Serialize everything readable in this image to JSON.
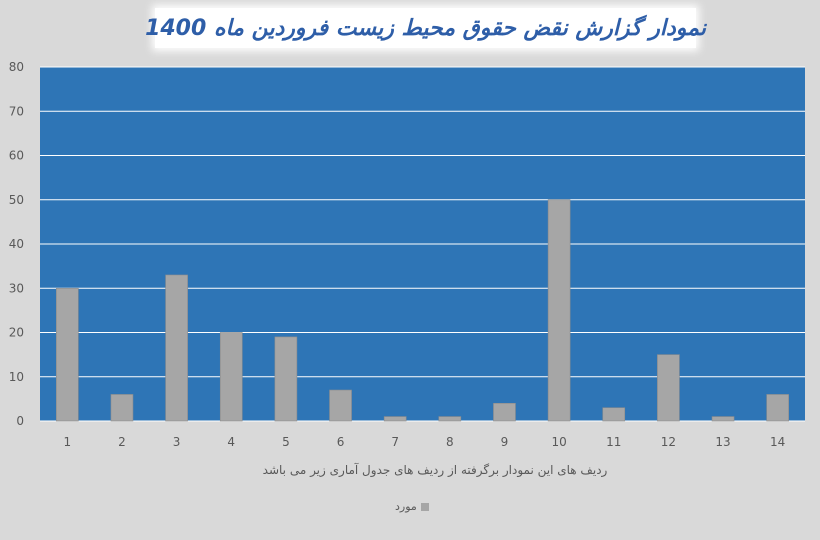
{
  "chart_data": {
    "type": "bar",
    "title": "نمودار گزارش نقض حقوق محیط زیست فروردین ماه 1400",
    "xlabel": "ردیف های این نمودار برگرفته از ردیف های جدول آماری زیر می باشد",
    "ylabel": "",
    "categories": [
      "1",
      "2",
      "3",
      "4",
      "5",
      "6",
      "7",
      "8",
      "9",
      "10",
      "11",
      "12",
      "13",
      "14"
    ],
    "series": [
      {
        "name": "مورد",
        "values": [
          30,
          6,
          33,
          20,
          19,
          7,
          1,
          1,
          4,
          50,
          3,
          15,
          1,
          6
        ]
      }
    ],
    "ylim": [
      0,
      80
    ],
    "yticks": [
      "0",
      "10",
      "20",
      "30",
      "40",
      "50",
      "60",
      "70",
      "80"
    ],
    "grid": true,
    "legend_position": "bottom",
    "colors": {
      "plot_background": "#2e75b6",
      "bar": "#a6a6a6",
      "grid": "#ffffff",
      "title": "#2e5ea8"
    }
  }
}
